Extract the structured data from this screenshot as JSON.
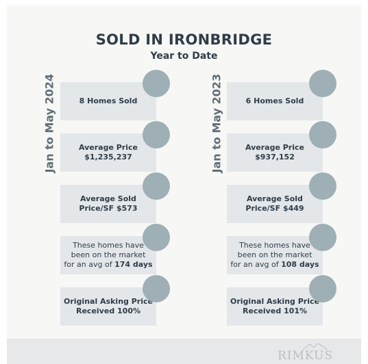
{
  "title": "SOLD IN IRONBRIDGE",
  "subtitle": "Year to Date",
  "columns": [
    {
      "period": "Jan to May 2024",
      "cards": [
        {
          "lines": [
            "8 Homes Sold"
          ]
        },
        {
          "lines": [
            "Average Price",
            "$1,235,237"
          ]
        },
        {
          "lines": [
            "Average Sold",
            "Price/SF $573"
          ]
        },
        {
          "lines": [
            "These homes have",
            "been on the market",
            "for an avg of"
          ],
          "emphasis": "174 days"
        },
        {
          "lines": [
            "Original Asking Price",
            "Received 100%"
          ]
        }
      ]
    },
    {
      "period": "Jan to May 2023",
      "cards": [
        {
          "lines": [
            "6 Homes Sold"
          ]
        },
        {
          "lines": [
            "Average Price",
            "$937,152"
          ]
        },
        {
          "lines": [
            "Average Sold",
            "Price/SF $449"
          ]
        },
        {
          "lines": [
            "These homes have",
            "been on the market",
            "for an avg of"
          ],
          "emphasis": "108 days"
        },
        {
          "lines": [
            "Original Asking Price",
            "Received  101%"
          ]
        }
      ]
    }
  ],
  "footer": {
    "logo": "RIMKUS"
  }
}
